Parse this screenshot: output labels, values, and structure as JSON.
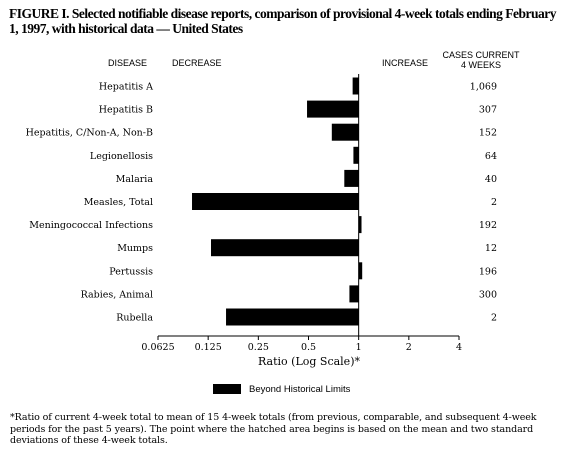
{
  "title": "FIGURE I. Selected notifiable disease reports, comparison of provisional 4-week totals ending February 1, 1997, with historical data — United States",
  "headers": {
    "disease": "DISEASE",
    "decrease": "DECREASE",
    "increase": "INCREASE",
    "cases_line1": "CASES CURRENT",
    "cases_line2": "4 WEEKS"
  },
  "chart_data": {
    "type": "bar",
    "orientation": "horizontal",
    "x_scale": "log2",
    "xlim": [
      0.0625,
      4
    ],
    "baseline": 1,
    "xticks": [
      "0.0625",
      "0.125",
      "0.25",
      "0.5",
      "1",
      "2",
      "4"
    ],
    "xlabel": "Ratio (Log Scale)*",
    "categories": [
      "Hepatitis A",
      "Hepatitis B",
      "Hepatitis, C/Non-A, Non-B",
      "Legionellosis",
      "Malaria",
      "Measles, Total",
      "Meningococcal Infections",
      "Mumps",
      "Pertussis",
      "Rabies, Animal",
      "Rubella"
    ],
    "values": [
      0.92,
      0.49,
      0.69,
      0.93,
      0.82,
      0.1,
      1.04,
      0.13,
      1.05,
      0.88,
      0.16
    ],
    "cases": [
      "1,069",
      "307",
      "152",
      "64",
      "40",
      "2",
      "192",
      "12",
      "196",
      "300",
      "2"
    ],
    "bar_color": "#000000"
  },
  "legend": {
    "label": "Beyond Historical Limits"
  },
  "footnote": "*Ratio of current 4-week total to mean of 15 4-week totals (from previous, comparable, and subsequent 4-week periods for the past 5 years). The point where the hatched area begins is based on the mean and two standard deviations of these 4-week totals."
}
